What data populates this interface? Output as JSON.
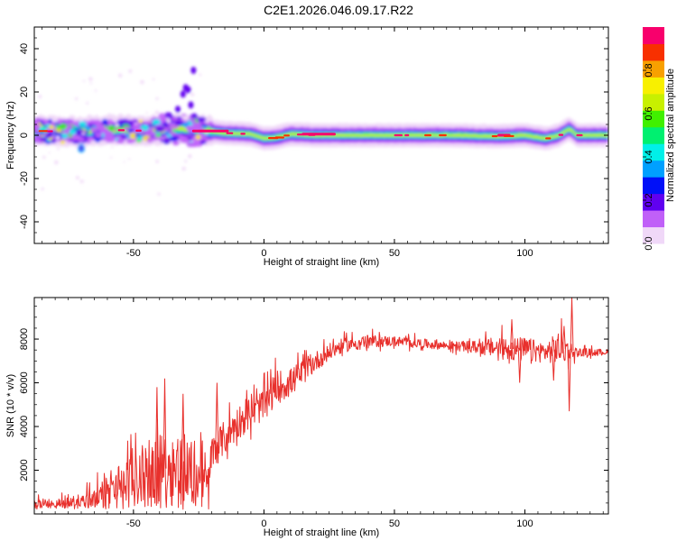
{
  "chart_data": [
    {
      "type": "heatmap",
      "title": "C2E1.2026.046.09.17.R22",
      "xlabel": "Height of straight line (km)",
      "ylabel": "Frequency (Hz)",
      "xlim": [
        -88,
        132
      ],
      "ylim": [
        -50,
        50
      ],
      "xticks": [
        -50,
        0,
        50,
        100
      ],
      "yticks": [
        -40,
        -20,
        0,
        20,
        40
      ],
      "colorbar": {
        "label": "Normalized spectral amplitude",
        "range": [
          0.0,
          1.0
        ],
        "ticks": [
          "0.0",
          "0.2",
          "0.4",
          "0.6",
          "0.8"
        ],
        "colors": [
          "#f0d8f8",
          "#c060f8",
          "#6000f0",
          "#0010f8",
          "#00a0ff",
          "#00f0e8",
          "#00f070",
          "#40f000",
          "#c8f000",
          "#f8f000",
          "#f8a000",
          "#f83000",
          "#f8006c"
        ]
      },
      "main_ridge": [
        {
          "x": -88,
          "f": 2.0
        },
        {
          "x": -70,
          "f": 1.5
        },
        {
          "x": -60,
          "f": 2.5
        },
        {
          "x": -45,
          "f": 2.0
        },
        {
          "x": -35,
          "f": 3.0
        },
        {
          "x": -25,
          "f": 2.5
        },
        {
          "x": -15,
          "f": 1.0
        },
        {
          "x": -5,
          "f": 0.5
        },
        {
          "x": 0,
          "f": -1.5
        },
        {
          "x": 5,
          "f": -1.0
        },
        {
          "x": 10,
          "f": 0.5
        },
        {
          "x": 20,
          "f": 0.0
        },
        {
          "x": 30,
          "f": 0.0
        },
        {
          "x": 50,
          "f": 0.0
        },
        {
          "x": 70,
          "f": 0.0
        },
        {
          "x": 90,
          "f": -0.5
        },
        {
          "x": 100,
          "f": 0.0
        },
        {
          "x": 108,
          "f": -1.5
        },
        {
          "x": 113,
          "f": 0.0
        },
        {
          "x": 117,
          "f": 3.0
        },
        {
          "x": 120,
          "f": 0.0
        },
        {
          "x": 132,
          "f": 0.0
        }
      ],
      "high_amplitude_segments": [
        {
          "x_start": -27,
          "x_end": -14,
          "f": 2.0
        },
        {
          "x_start": 15,
          "x_end": 27,
          "f": 0.5
        },
        {
          "x_start": 90,
          "x_end": 94,
          "f": 0.0
        }
      ]
    },
    {
      "type": "line",
      "xlabel": "Height of straight line (km)",
      "ylabel": "SNR (10 * v/v)",
      "xlim": [
        -88,
        132
      ],
      "ylim": [
        0,
        9900
      ],
      "xticks": [
        -50,
        0,
        50,
        100
      ],
      "yticks": [
        2000,
        4000,
        6000,
        8000
      ],
      "series": [
        {
          "name": "SNR",
          "color": "#e8302c",
          "envelope": [
            {
              "x": -88,
              "mean": 400,
              "amp": 500
            },
            {
              "x": -80,
              "mean": 400,
              "amp": 400
            },
            {
              "x": -70,
              "mean": 550,
              "amp": 600
            },
            {
              "x": -62,
              "mean": 900,
              "amp": 900
            },
            {
              "x": -55,
              "mean": 1300,
              "amp": 1600
            },
            {
              "x": -45,
              "mean": 1800,
              "amp": 2300
            },
            {
              "x": -35,
              "mean": 2200,
              "amp": 2800
            },
            {
              "x": -25,
              "mean": 1800,
              "amp": 2500
            },
            {
              "x": -21,
              "mean": 1500,
              "amp": 1700
            },
            {
              "x": -20,
              "mean": 2800,
              "amp": 1300
            },
            {
              "x": -15,
              "mean": 3500,
              "amp": 1200
            },
            {
              "x": -10,
              "mean": 4200,
              "amp": 1200
            },
            {
              "x": -5,
              "mean": 4600,
              "amp": 1100
            },
            {
              "x": 0,
              "mean": 5000,
              "amp": 1100
            },
            {
              "x": 5,
              "mean": 5800,
              "amp": 1200
            },
            {
              "x": 10,
              "mean": 6000,
              "amp": 1000
            },
            {
              "x": 15,
              "mean": 6500,
              "amp": 900
            },
            {
              "x": 20,
              "mean": 7000,
              "amp": 700
            },
            {
              "x": 25,
              "mean": 7400,
              "amp": 600
            },
            {
              "x": 30,
              "mean": 7700,
              "amp": 500
            },
            {
              "x": 40,
              "mean": 7900,
              "amp": 450
            },
            {
              "x": 50,
              "mean": 7900,
              "amp": 350
            },
            {
              "x": 60,
              "mean": 7800,
              "amp": 350
            },
            {
              "x": 70,
              "mean": 7700,
              "amp": 300
            },
            {
              "x": 80,
              "mean": 7650,
              "amp": 400
            },
            {
              "x": 90,
              "mean": 7600,
              "amp": 800
            },
            {
              "x": 100,
              "mean": 7500,
              "amp": 900
            },
            {
              "x": 108,
              "mean": 7400,
              "amp": 700
            },
            {
              "x": 113,
              "mean": 7600,
              "amp": 1200
            },
            {
              "x": 120,
              "mean": 7400,
              "amp": 300
            },
            {
              "x": 132,
              "mean": 7400,
              "amp": 200
            }
          ],
          "spikes": [
            {
              "x": 95,
              "y": 8900
            },
            {
              "x": 98,
              "y": 6000
            },
            {
              "x": 111,
              "y": 6100
            },
            {
              "x": 115,
              "y": 8600
            },
            {
              "x": 117,
              "y": 4700
            },
            {
              "x": 118,
              "y": 9900
            },
            {
              "x": -38,
              "y": 6200
            },
            {
              "x": -41,
              "y": 5800
            },
            {
              "x": -31,
              "y": 5500
            },
            {
              "x": -18,
              "y": 6000
            }
          ]
        }
      ]
    }
  ]
}
